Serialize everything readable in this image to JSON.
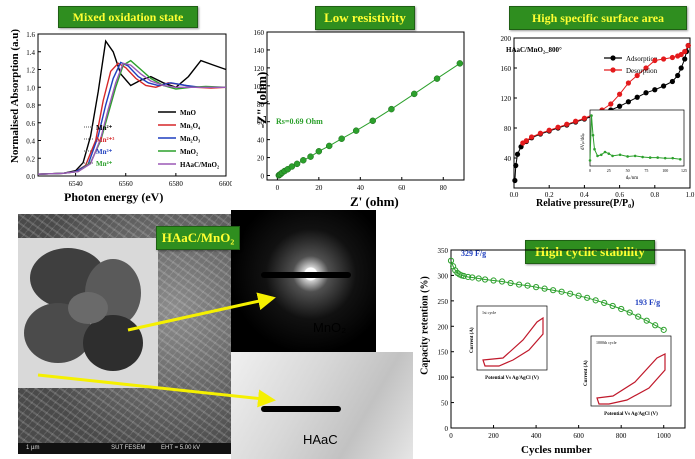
{
  "badges": {
    "mixed": "Mixed oxidation state",
    "resist": "Low resistivity",
    "surface": "High specific surface area",
    "haac": "HAaC/MnO₂",
    "cyclic": "High cyclic stability"
  },
  "colors": {
    "badge_bg": "#2f8e1f",
    "badge_fg": "#ffff33",
    "green_series": "#2ca02c",
    "red_series": "#e41a1c",
    "arrow": "#f5f000"
  },
  "chart_data": [
    {
      "type": "line",
      "panel": "xanes",
      "xlabel": "Photon energy (eV)",
      "ylabel": "Normalised Absorption (a.u)",
      "xlim": [
        6525,
        6600
      ],
      "ylim": [
        0,
        1.6
      ],
      "xticks": [
        "6540",
        "6560",
        "6580",
        "6600"
      ],
      "yticks": [
        "0.0",
        "0.2",
        "0.4",
        "0.6",
        "0.8",
        "1.0",
        "1.2",
        "1.4",
        "1.6"
      ],
      "edge_labels": [
        "Mn²⁺",
        "Mn²⁺³",
        "Mn³⁺",
        "Mn⁴⁺"
      ],
      "edge_label_colors": [
        "#000000",
        "#d62728",
        "#1f3fbf",
        "#2ca02c"
      ],
      "series": [
        {
          "name": "MnO",
          "color": "#000000",
          "x": [
            6525,
            6535,
            6540,
            6543,
            6546,
            6549,
            6552,
            6555,
            6558,
            6562,
            6566,
            6570,
            6575,
            6580,
            6585,
            6590,
            6595,
            6600
          ],
          "y": [
            0.02,
            0.03,
            0.06,
            0.15,
            0.45,
            0.95,
            1.52,
            1.4,
            1.15,
            1.02,
            1.08,
            1.12,
            1.05,
            1.0,
            1.12,
            1.3,
            1.25,
            1.2
          ]
        },
        {
          "name": "Mn₃O₄",
          "color": "#d62728",
          "x": [
            6525,
            6535,
            6540,
            6544,
            6548,
            6551,
            6554,
            6557,
            6560,
            6564,
            6568,
            6572,
            6577,
            6582,
            6588,
            6594,
            6600
          ],
          "y": [
            0.02,
            0.03,
            0.05,
            0.12,
            0.4,
            0.85,
            1.18,
            1.27,
            1.22,
            1.1,
            1.02,
            1.0,
            1.05,
            1.03,
            1.0,
            0.99,
            1.0
          ]
        },
        {
          "name": "Mn₂O₃",
          "color": "#1f3fbf",
          "x": [
            6525,
            6535,
            6540,
            6545,
            6549,
            6552,
            6555,
            6558,
            6561,
            6565,
            6569,
            6573,
            6578,
            6584,
            6590,
            6596,
            6600
          ],
          "y": [
            0.02,
            0.03,
            0.05,
            0.13,
            0.45,
            0.8,
            1.1,
            1.28,
            1.24,
            1.12,
            1.05,
            1.02,
            1.05,
            1.02,
            1.0,
            1.0,
            1.0
          ]
        },
        {
          "name": "MnO₂",
          "color": "#2ca02c",
          "x": [
            6525,
            6535,
            6541,
            6546,
            6550,
            6553,
            6556,
            6559,
            6562,
            6566,
            6570,
            6575,
            6580,
            6586,
            6592,
            6600
          ],
          "y": [
            0.02,
            0.03,
            0.05,
            0.15,
            0.4,
            0.7,
            1.0,
            1.25,
            1.3,
            1.2,
            1.1,
            1.02,
            0.98,
            1.0,
            1.01,
            1.0
          ]
        },
        {
          "name": "HAaC/MnO₂",
          "color": "#9b59b6",
          "x": [
            6525,
            6535,
            6541,
            6546,
            6550,
            6553,
            6556,
            6559,
            6562,
            6566,
            6570,
            6575,
            6580,
            6586,
            6592,
            6600
          ],
          "y": [
            0.02,
            0.03,
            0.05,
            0.14,
            0.42,
            0.75,
            1.05,
            1.27,
            1.25,
            1.15,
            1.07,
            1.02,
            1.0,
            1.0,
            1.0,
            1.0
          ]
        }
      ]
    },
    {
      "type": "scatter",
      "panel": "nyquist",
      "xlabel": "Z' (ohm)",
      "ylabel": "-Z\" (ohm)",
      "xlim": [
        -5,
        90
      ],
      "ylim": [
        -5,
        160
      ],
      "xticks": [
        "0",
        "20",
        "40",
        "60",
        "80"
      ],
      "yticks": [
        "0",
        "20",
        "40",
        "60",
        "80",
        "100",
        "120",
        "140",
        "160"
      ],
      "annotation": "Rs=0.69 Ohm",
      "series": [
        {
          "name": "HAaC/MnO₂",
          "color": "#2ca02c",
          "x": [
            0.7,
            1.0,
            1.5,
            2.2,
            3.5,
            5.0,
            7.0,
            9.5,
            12.5,
            16,
            20,
            25,
            31,
            38,
            46,
            55,
            66,
            77,
            88
          ],
          "y": [
            0.2,
            0.8,
            1.5,
            3,
            5,
            7,
            10,
            13,
            17,
            21,
            27,
            33,
            41,
            50,
            61,
            74,
            91,
            108,
            125
          ]
        }
      ]
    },
    {
      "type": "line",
      "panel": "bet",
      "title": "HAaC/MnO₂_800°",
      "xlabel": "Relative pressure(P/P₀)",
      "xlim": [
        0,
        1.0
      ],
      "ylim": [
        0,
        200
      ],
      "xticks": [
        "0.0",
        "0.2",
        "0.4",
        "0.6",
        "0.8",
        "1.0"
      ],
      "yticks": [
        "40",
        "80",
        "120",
        "160",
        "200"
      ],
      "legend_position": "top-right",
      "series": [
        {
          "name": "Adsorption",
          "color": "#000000",
          "x": [
            0.005,
            0.01,
            0.02,
            0.04,
            0.07,
            0.1,
            0.15,
            0.2,
            0.25,
            0.3,
            0.35,
            0.4,
            0.45,
            0.5,
            0.55,
            0.6,
            0.65,
            0.7,
            0.75,
            0.8,
            0.85,
            0.9,
            0.93,
            0.95,
            0.97,
            0.98,
            0.99
          ],
          "y": [
            10,
            30,
            45,
            55,
            62,
            67,
            72,
            76,
            80,
            84,
            88,
            92,
            96,
            100,
            104,
            109,
            115,
            121,
            127,
            131,
            136,
            142,
            150,
            160,
            172,
            182,
            190
          ]
        },
        {
          "name": "Desorption",
          "color": "#e41a1c",
          "x": [
            0.99,
            0.97,
            0.95,
            0.93,
            0.9,
            0.85,
            0.8,
            0.75,
            0.7,
            0.65,
            0.6,
            0.55,
            0.5,
            0.45,
            0.4,
            0.35,
            0.3,
            0.25,
            0.2,
            0.15,
            0.1,
            0.07,
            0.05
          ],
          "y": [
            190,
            182,
            178,
            176,
            174,
            172,
            170,
            160,
            150,
            140,
            125,
            112,
            104,
            98,
            93,
            89,
            85,
            81,
            77,
            73,
            68,
            63,
            60
          ]
        }
      ],
      "inset": {
        "xlabel": "dₚ/nm",
        "ylabel": "dVₚ/ddₚ",
        "xticks": [
          "0",
          "25",
          "50",
          "75",
          "100",
          "125"
        ],
        "x": [
          0,
          2,
          4,
          6,
          10,
          15,
          20,
          25,
          30,
          40,
          50,
          60,
          70,
          80,
          90,
          100,
          110,
          120
        ],
        "y": [
          0.1,
          0.9,
          0.55,
          0.3,
          0.18,
          0.2,
          0.25,
          0.22,
          0.18,
          0.2,
          0.17,
          0.18,
          0.16,
          0.15,
          0.15,
          0.14,
          0.14,
          0.12
        ]
      }
    },
    {
      "type": "scatter",
      "panel": "cycling",
      "xlabel": "Cycles number",
      "ylabel": "Capacity retention (%)",
      "xlim": [
        0,
        1100
      ],
      "ylim": [
        0,
        350
      ],
      "xticks": [
        "0",
        "200",
        "400",
        "600",
        "800",
        "1000"
      ],
      "yticks": [
        "0",
        "50",
        "100",
        "150",
        "200",
        "250",
        "300",
        "350"
      ],
      "annotations": [
        "329 F/g",
        "193 F/g"
      ],
      "series": [
        {
          "name": "HAaC/MnO₂",
          "color": "#2ca02c",
          "x": [
            0,
            10,
            20,
            30,
            40,
            50,
            60,
            80,
            100,
            130,
            160,
            200,
            240,
            280,
            320,
            360,
            400,
            440,
            480,
            520,
            560,
            600,
            640,
            680,
            720,
            760,
            800,
            840,
            880,
            920,
            960,
            1000
          ],
          "y": [
            329,
            318,
            310,
            305,
            302,
            300,
            299,
            297,
            296,
            294,
            292,
            290,
            288,
            285,
            282,
            280,
            277,
            274,
            271,
            268,
            264,
            260,
            256,
            251,
            246,
            240,
            234,
            227,
            219,
            211,
            202,
            193
          ]
        }
      ]
    }
  ],
  "cv_insets": {
    "first": {
      "title": "1st cycle",
      "ylabel": "Current (A)",
      "xlabel": "Potential Vs Ag/AgCl (V)"
    },
    "last": {
      "title": "1000th cycle",
      "ylabel": "Current (A)",
      "xlabel": "Potential Vs Ag/AgCl (V)"
    }
  },
  "micro": {
    "labels": [
      "MnO₂",
      "HAaC"
    ],
    "sem_footer": [
      "1 µm",
      "SUT FESEM",
      "EHT = 5.00 kV"
    ]
  }
}
